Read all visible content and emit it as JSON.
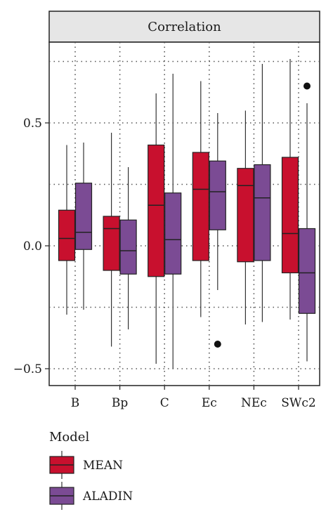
{
  "chart_data": {
    "type": "boxplot",
    "title": "",
    "panel_label": "Correlation",
    "xlabel": "",
    "ylabel": "",
    "ylim": [
      -0.55,
      0.82
    ],
    "y_ticks": [
      -0.5,
      0.0,
      0.5
    ],
    "y_tick_labels": [
      "−0.5",
      "0.0",
      "0.5"
    ],
    "grid": true,
    "categories": [
      "B",
      "Bp",
      "C",
      "Ec",
      "NEc",
      "SWc2"
    ],
    "legend": {
      "title": "Model",
      "position": "bottom-left"
    },
    "series": [
      {
        "name": "MEAN",
        "color": "#c8102e",
        "boxes": [
          {
            "min": -0.28,
            "q1": -0.06,
            "median": 0.03,
            "q3": 0.145,
            "max": 0.41,
            "outliers": []
          },
          {
            "min": -0.41,
            "q1": -0.1,
            "median": 0.07,
            "q3": 0.12,
            "max": 0.46,
            "outliers": []
          },
          {
            "min": -0.48,
            "q1": -0.125,
            "median": 0.165,
            "q3": 0.41,
            "max": 0.62,
            "outliers": []
          },
          {
            "min": -0.29,
            "q1": -0.06,
            "median": 0.23,
            "q3": 0.38,
            "max": 0.67,
            "outliers": []
          },
          {
            "min": -0.32,
            "q1": -0.065,
            "median": 0.245,
            "q3": 0.315,
            "max": 0.55,
            "outliers": []
          },
          {
            "min": -0.3,
            "q1": -0.11,
            "median": 0.05,
            "q3": 0.36,
            "max": 0.76,
            "outliers": []
          }
        ]
      },
      {
        "name": "ALADIN",
        "color": "#7b4b94",
        "boxes": [
          {
            "min": -0.26,
            "q1": -0.015,
            "median": 0.055,
            "q3": 0.255,
            "max": 0.42,
            "outliers": []
          },
          {
            "min": -0.34,
            "q1": -0.115,
            "median": -0.02,
            "q3": 0.105,
            "max": 0.32,
            "outliers": []
          },
          {
            "min": -0.5,
            "q1": -0.115,
            "median": 0.025,
            "q3": 0.215,
            "max": 0.7,
            "outliers": []
          },
          {
            "min": -0.18,
            "q1": 0.065,
            "median": 0.22,
            "q3": 0.345,
            "max": 0.54,
            "outliers": [
              -0.4
            ]
          },
          {
            "min": -0.31,
            "q1": -0.06,
            "median": 0.195,
            "q3": 0.33,
            "max": 0.74,
            "outliers": []
          },
          {
            "min": -0.47,
            "q1": -0.275,
            "median": -0.11,
            "q3": 0.07,
            "max": 0.58,
            "outliers": [
              0.65
            ]
          }
        ]
      }
    ]
  }
}
